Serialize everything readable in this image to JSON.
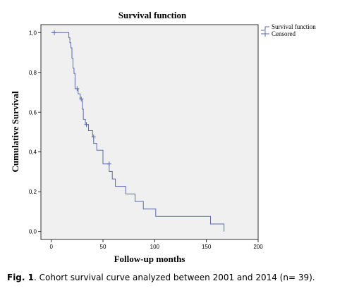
{
  "chart_data": {
    "type": "line",
    "step": true,
    "title": "Survival function",
    "xlabel": "Follow-up months",
    "ylabel": "Cumulative Survival",
    "xlim": [
      -10,
      200
    ],
    "ylim": [
      -0.04,
      1.04
    ],
    "xticks": [
      0,
      50,
      100,
      150,
      200
    ],
    "yticks": [
      0.0,
      0.2,
      0.4,
      0.6,
      0.8,
      1.0
    ],
    "ytick_labels": [
      "0,0",
      "0,2",
      "0,4",
      "0,6",
      "0,8",
      "1,0"
    ],
    "plot_background": "#f0f0f0",
    "line_color": "#5b6aa8",
    "legend_position": "outside-right-top",
    "series": [
      {
        "name": "Survival function",
        "steps": [
          [
            0,
            1.0
          ],
          [
            17,
            1.0
          ],
          [
            17,
            0.974
          ],
          [
            18,
            0.974
          ],
          [
            18,
            0.949
          ],
          [
            19,
            0.949
          ],
          [
            19,
            0.923
          ],
          [
            20,
            0.923
          ],
          [
            20,
            0.872
          ],
          [
            21,
            0.872
          ],
          [
            21,
            0.821
          ],
          [
            22,
            0.821
          ],
          [
            22,
            0.795
          ],
          [
            23,
            0.795
          ],
          [
            23,
            0.718
          ],
          [
            26,
            0.718
          ],
          [
            26,
            0.692
          ],
          [
            28,
            0.692
          ],
          [
            28,
            0.666
          ],
          [
            30,
            0.666
          ],
          [
            30,
            0.615
          ],
          [
            31,
            0.615
          ],
          [
            31,
            0.564
          ],
          [
            33,
            0.564
          ],
          [
            33,
            0.538
          ],
          [
            36,
            0.538
          ],
          [
            36,
            0.507
          ],
          [
            40,
            0.507
          ],
          [
            40,
            0.476
          ],
          [
            41,
            0.476
          ],
          [
            41,
            0.443
          ],
          [
            44,
            0.443
          ],
          [
            44,
            0.409
          ],
          [
            50,
            0.409
          ],
          [
            50,
            0.34
          ],
          [
            56,
            0.34
          ],
          [
            56,
            0.302
          ],
          [
            59,
            0.302
          ],
          [
            59,
            0.264
          ],
          [
            62,
            0.264
          ],
          [
            62,
            0.227
          ],
          [
            72,
            0.227
          ],
          [
            72,
            0.189
          ],
          [
            81,
            0.189
          ],
          [
            81,
            0.151
          ],
          [
            89,
            0.151
          ],
          [
            89,
            0.113
          ],
          [
            101,
            0.113
          ],
          [
            101,
            0.076
          ],
          [
            154,
            0.076
          ],
          [
            154,
            0.038
          ],
          [
            167,
            0.038
          ],
          [
            167,
            0.0
          ]
        ]
      },
      {
        "name": "Censored",
        "censored_points": [
          [
            3,
            1.0
          ],
          [
            25,
            0.718
          ],
          [
            29,
            0.666
          ],
          [
            34,
            0.538
          ],
          [
            41,
            0.476
          ],
          [
            56,
            0.34
          ]
        ]
      }
    ]
  },
  "caption": {
    "label": "Fig. 1",
    "text": ". Cohort survival curve analyzed between 2001 and 2014 (n= 39)."
  }
}
